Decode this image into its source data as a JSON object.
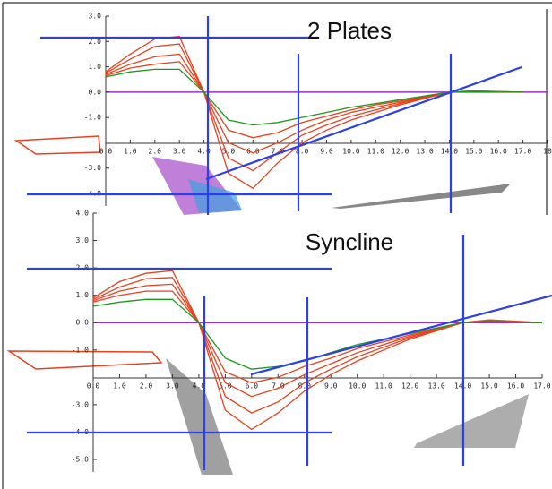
{
  "chart_data": [
    {
      "type": "line",
      "title": "2 Plates",
      "x": [
        0,
        1,
        2,
        3,
        4,
        5,
        6,
        7,
        8,
        9,
        10,
        11,
        12,
        13,
        14,
        15,
        16,
        17
      ],
      "series": [
        {
          "color": "#e8411f",
          "values": [
            0.8,
            1.5,
            2.1,
            2.2,
            0,
            -3.2,
            -3.8,
            -2.8,
            -2.0,
            -1.5,
            -1.1,
            -0.8,
            -0.5,
            -0.25,
            0,
            0.05,
            0.02,
            0
          ]
        },
        {
          "color": "#e8411f",
          "values": [
            0.75,
            1.3,
            1.8,
            1.9,
            0,
            -2.6,
            -3.1,
            -2.4,
            -1.7,
            -1.3,
            -0.95,
            -0.7,
            -0.45,
            -0.22,
            0,
            0.04,
            0.02,
            0
          ]
        },
        {
          "color": "#e8411f",
          "values": [
            0.7,
            1.1,
            1.4,
            1.5,
            0,
            -2.0,
            -2.4,
            -2.0,
            -1.5,
            -1.1,
            -0.8,
            -0.6,
            -0.4,
            -0.2,
            0,
            0.03,
            0.01,
            0
          ]
        },
        {
          "color": "#e8411f",
          "values": [
            0.65,
            0.95,
            1.1,
            1.2,
            0,
            -1.5,
            -1.8,
            -1.6,
            -1.2,
            -0.95,
            -0.7,
            -0.5,
            -0.35,
            -0.18,
            0,
            0.03,
            0.01,
            0
          ]
        },
        {
          "color": "#1a9a1a",
          "values": [
            0.6,
            0.8,
            0.9,
            0.9,
            0,
            -1.1,
            -1.3,
            -1.2,
            -1.0,
            -0.8,
            -0.6,
            -0.45,
            -0.3,
            -0.15,
            0,
            0.02,
            0,
            0
          ]
        }
      ],
      "xlim": [
        0,
        18
      ],
      "ylim": [
        -4,
        3
      ],
      "xticks": [
        {
          "value": 0,
          "label": "0.0"
        },
        {
          "value": 1,
          "label": "1.0"
        },
        {
          "value": 2,
          "label": "2.0"
        },
        {
          "value": 3,
          "label": "3.0"
        },
        {
          "value": 4,
          "label": "4.0"
        },
        {
          "value": 5,
          "label": "5.0"
        },
        {
          "value": 6,
          "label": "6.0"
        },
        {
          "value": 7,
          "label": "7.0"
        },
        {
          "value": 8,
          "label": "8.0"
        },
        {
          "value": 9,
          "label": "9.0"
        },
        {
          "value": 10,
          "label": "10.0"
        },
        {
          "value": 11,
          "label": "11.0"
        },
        {
          "value": 12,
          "label": "12.0"
        },
        {
          "value": 13,
          "label": "13.0"
        },
        {
          "value": 14,
          "label": "14.0"
        },
        {
          "value": 15,
          "label": "15.0"
        },
        {
          "value": 16,
          "label": "16.0"
        },
        {
          "value": 17,
          "label": "17.0"
        },
        18
      ],
      "yticks": [
        {
          "value": 3,
          "label": "3.0"
        },
        {
          "value": 2,
          "label": "2.0"
        },
        {
          "value": 1,
          "label": "1.0"
        },
        {
          "value": 0,
          "label": "0.0"
        },
        {
          "value": -1,
          "label": "-1.0"
        },
        {
          "value": -3,
          "label": "-3.0"
        },
        {
          "value": -4,
          "label": "-4.0"
        }
      ]
    },
    {
      "type": "line",
      "title": "Syncline",
      "x": [
        0,
        1,
        2,
        3,
        4,
        5,
        6,
        7,
        8,
        9,
        10,
        11,
        12,
        13,
        14,
        15,
        16,
        17
      ],
      "series": [
        {
          "color": "#e8411f",
          "values": [
            0.9,
            1.5,
            1.8,
            1.9,
            0,
            -3.2,
            -3.9,
            -3.3,
            -2.5,
            -1.9,
            -1.4,
            -1.0,
            -0.6,
            -0.3,
            0,
            0.1,
            0.05,
            0
          ]
        },
        {
          "color": "#e8411f",
          "values": [
            0.85,
            1.3,
            1.6,
            1.65,
            0,
            -2.7,
            -3.3,
            -2.9,
            -2.2,
            -1.7,
            -1.25,
            -0.9,
            -0.55,
            -0.28,
            0,
            0.08,
            0.04,
            0
          ]
        },
        {
          "color": "#e8411f",
          "values": [
            0.8,
            1.15,
            1.35,
            1.4,
            0,
            -2.2,
            -2.7,
            -2.4,
            -1.9,
            -1.5,
            -1.1,
            -0.8,
            -0.5,
            -0.25,
            0,
            0.06,
            0.03,
            0
          ]
        },
        {
          "color": "#e8411f",
          "values": [
            0.75,
            1.0,
            1.15,
            1.15,
            0,
            -1.8,
            -2.2,
            -2.0,
            -1.6,
            -1.3,
            -0.95,
            -0.7,
            -0.45,
            -0.22,
            0,
            0.05,
            0.02,
            0
          ]
        },
        {
          "color": "#1a9a1a",
          "values": [
            0.6,
            0.75,
            0.85,
            0.85,
            0,
            -1.3,
            -1.7,
            -1.6,
            -1.4,
            -1.1,
            -0.8,
            -0.6,
            -0.4,
            -0.2,
            0,
            0.04,
            0.02,
            0
          ]
        }
      ],
      "xlim": [
        0,
        17
      ],
      "ylim": [
        -5,
        4
      ],
      "xticks": [
        {
          "value": 0,
          "label": "0.0"
        },
        {
          "value": 1,
          "label": "1.0"
        },
        {
          "value": 2,
          "label": "2.0"
        },
        {
          "value": 3,
          "label": "3.0"
        },
        {
          "value": 4,
          "label": "4.0"
        },
        {
          "value": 5,
          "label": "5.0"
        },
        {
          "value": 6,
          "label": "6.0"
        },
        {
          "value": 7,
          "label": "7.0"
        },
        {
          "value": 8,
          "label": "8.0"
        },
        {
          "value": 9,
          "label": "9.0"
        },
        {
          "value": 10,
          "label": "10.0"
        },
        {
          "value": 11,
          "label": "11.0"
        },
        {
          "value": 12,
          "label": "12.0"
        },
        {
          "value": 13,
          "label": "13.0"
        },
        {
          "value": 14,
          "label": "14.0"
        },
        {
          "value": 15,
          "label": "15.0"
        },
        {
          "value": 16,
          "label": "16.0"
        },
        {
          "value": 17,
          "label": "17.0"
        }
      ],
      "yticks": [
        {
          "value": 4,
          "label": "4.0"
        },
        {
          "value": 3,
          "label": "3.0"
        },
        {
          "value": 2,
          "label": "2.0"
        },
        {
          "value": 1,
          "label": "1.0"
        },
        {
          "value": 0,
          "label": "0.0"
        },
        {
          "value": -1,
          "label": "-1.0"
        },
        {
          "value": -3,
          "label": "-3.0"
        },
        {
          "value": -4,
          "label": "-4.0"
        },
        {
          "value": -5,
          "label": "-5.0"
        }
      ]
    }
  ]
}
